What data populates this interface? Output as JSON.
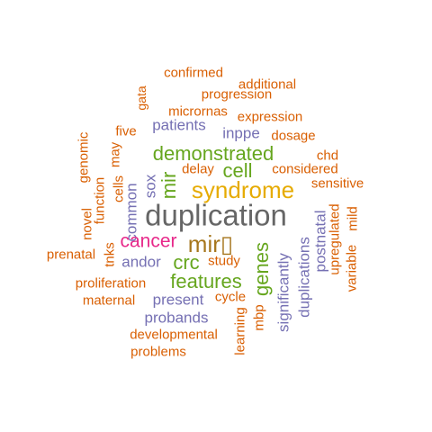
{
  "colors": {
    "orange": "#D95F02",
    "purple": "#7570B3",
    "magenta": "#E7298A",
    "green": "#66A61E",
    "gold": "#E6AB02",
    "olive": "#A6761D",
    "gray": "#666666"
  },
  "words": [
    {
      "text": "confirmed",
      "color": "#D95F02"
    },
    {
      "text": "additional",
      "color": "#D95F02"
    },
    {
      "text": "gata",
      "color": "#D95F02"
    },
    {
      "text": "progression",
      "color": "#D95F02"
    },
    {
      "text": "micrornas",
      "color": "#D95F02"
    },
    {
      "text": "expression",
      "color": "#D95F02"
    },
    {
      "text": "patients",
      "color": "#7570B3"
    },
    {
      "text": "genomic",
      "color": "#D95F02"
    },
    {
      "text": "five",
      "color": "#D95F02"
    },
    {
      "text": "inppe",
      "color": "#7570B3"
    },
    {
      "text": "dosage",
      "color": "#D95F02"
    },
    {
      "text": "may",
      "color": "#D95F02"
    },
    {
      "text": "chd",
      "color": "#D95F02"
    },
    {
      "text": "demonstrated",
      "color": "#66A61E"
    },
    {
      "text": "mir",
      "color": "#66A61E"
    },
    {
      "text": "delay",
      "color": "#D95F02"
    },
    {
      "text": "cell",
      "color": "#66A61E"
    },
    {
      "text": "considered",
      "color": "#D95F02"
    },
    {
      "text": "cells",
      "color": "#D95F02"
    },
    {
      "text": "function",
      "color": "#D95F02"
    },
    {
      "text": "sox",
      "color": "#7570B3"
    },
    {
      "text": "syndrome",
      "color": "#E6AB02"
    },
    {
      "text": "sensitive",
      "color": "#D95F02"
    },
    {
      "text": "novel",
      "color": "#D95F02"
    },
    {
      "text": "common",
      "color": "#7570B3"
    },
    {
      "text": "duplication",
      "color": "#666666"
    },
    {
      "text": "upregulated",
      "color": "#D95F02"
    },
    {
      "text": "mild",
      "color": "#D95F02"
    },
    {
      "text": "postnatal",
      "color": "#7570B3"
    },
    {
      "text": "tnks",
      "color": "#D95F02"
    },
    {
      "text": "cancer",
      "color": "#E7298A"
    },
    {
      "text": "mir▯",
      "color": "#A6761D"
    },
    {
      "text": "genes",
      "color": "#66A61E"
    },
    {
      "text": "duplications",
      "color": "#7570B3"
    },
    {
      "text": "variable",
      "color": "#D95F02"
    },
    {
      "text": "prenatal",
      "color": "#D95F02"
    },
    {
      "text": "andor",
      "color": "#7570B3"
    },
    {
      "text": "crc",
      "color": "#66A61E"
    },
    {
      "text": "study",
      "color": "#D95F02"
    },
    {
      "text": "significantly",
      "color": "#7570B3"
    },
    {
      "text": "proliferation",
      "color": "#D95F02"
    },
    {
      "text": "features",
      "color": "#66A61E"
    },
    {
      "text": "maternal",
      "color": "#D95F02"
    },
    {
      "text": "present",
      "color": "#7570B3"
    },
    {
      "text": "cycle",
      "color": "#D95F02"
    },
    {
      "text": "mbp",
      "color": "#D95F02"
    },
    {
      "text": "learning",
      "color": "#D95F02"
    },
    {
      "text": "probands",
      "color": "#7570B3"
    },
    {
      "text": "developmental",
      "color": "#D95F02"
    },
    {
      "text": "problems",
      "color": "#D95F02"
    }
  ]
}
